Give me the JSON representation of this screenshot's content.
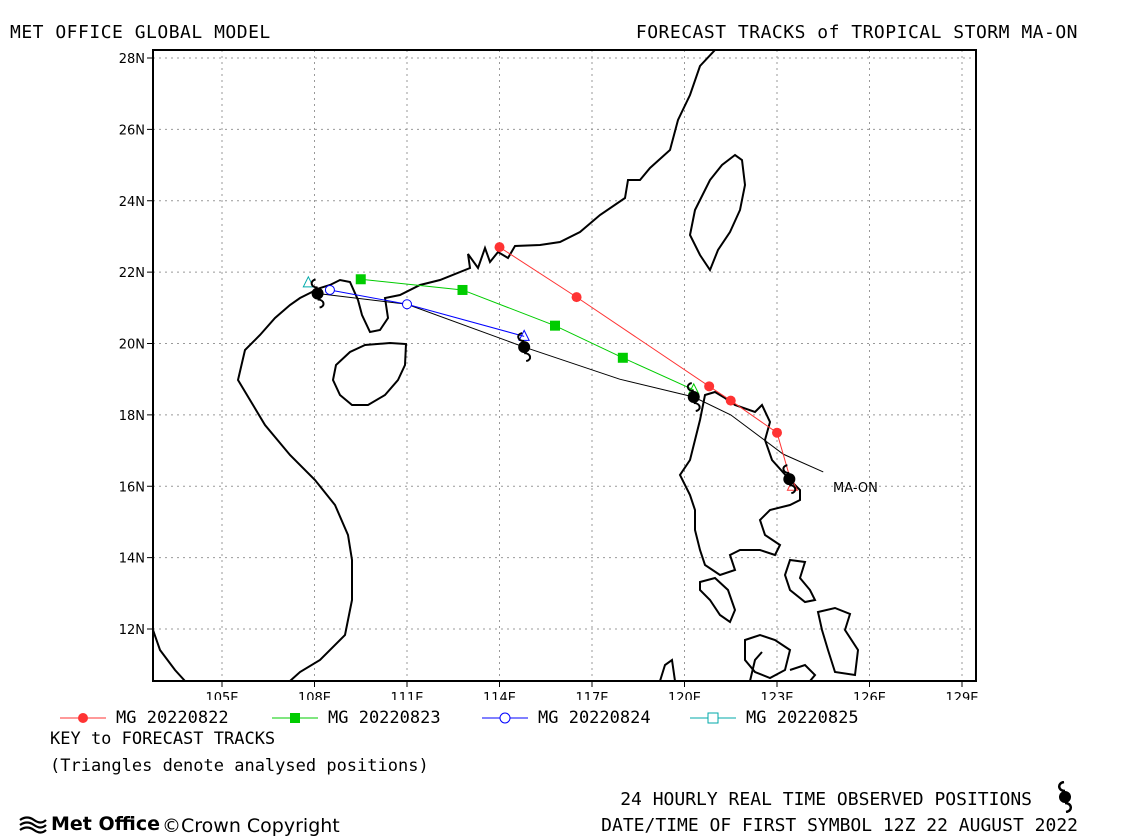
{
  "header": {
    "left": "MET OFFICE GLOBAL MODEL",
    "right": "FORECAST TRACKS of TROPICAL STORM MA-ON"
  },
  "chart_data": {
    "type": "map",
    "lon_range": [
      102.5,
      129.5
    ],
    "lat_range": [
      10.5,
      28.3
    ],
    "grid": true,
    "lon_ticks": [
      "105E",
      "108E",
      "111E",
      "114E",
      "117E",
      "120E",
      "123E",
      "126E",
      "129E"
    ],
    "lat_ticks": [
      "12N",
      "14N",
      "16N",
      "18N",
      "20N",
      "22N",
      "24N",
      "26N",
      "28N"
    ],
    "storm_label": "MA-ON",
    "observed": [
      {
        "lon": 123.4,
        "lat": 16.2
      },
      {
        "lon": 120.3,
        "lat": 18.5
      },
      {
        "lon": 114.8,
        "lat": 19.9
      },
      {
        "lon": 108.1,
        "lat": 21.4
      }
    ],
    "series": [
      {
        "name": "MG 20220822",
        "color": "#ff3333",
        "marker": "filled-circle",
        "points": [
          [
            123.5,
            16.0
          ],
          [
            123.0,
            17.5
          ],
          [
            121.5,
            18.4
          ],
          [
            120.8,
            18.8
          ],
          [
            116.5,
            21.3
          ],
          [
            114.0,
            22.7
          ]
        ]
      },
      {
        "name": "MG 20220823",
        "color": "#00cc00",
        "marker": "filled-square",
        "points": [
          [
            120.3,
            18.7
          ],
          [
            118.0,
            19.6
          ],
          [
            115.8,
            20.5
          ],
          [
            112.8,
            21.5
          ],
          [
            109.5,
            21.8
          ]
        ]
      },
      {
        "name": "MG 20220824",
        "color": "#0000ff",
        "marker": "open-circle",
        "points": [
          [
            114.8,
            20.2
          ],
          [
            111.0,
            21.1
          ],
          [
            108.5,
            21.5
          ]
        ]
      },
      {
        "name": "MG 20220825",
        "color": "#00aaaa",
        "marker": "open-square",
        "points": [
          [
            107.8,
            21.7
          ]
        ]
      }
    ],
    "observed_track": [
      [
        124.5,
        16.4
      ],
      [
        123.2,
        16.9
      ],
      [
        121.5,
        18.0
      ],
      [
        120.3,
        18.5
      ],
      [
        117.9,
        19.0
      ],
      [
        114.8,
        19.9
      ],
      [
        111.0,
        21.1
      ],
      [
        108.1,
        21.4
      ]
    ]
  },
  "legend": {
    "items": [
      {
        "label": "MG 20220822",
        "color": "#ff3333",
        "marker": "filled-circle"
      },
      {
        "label": "MG 20220823",
        "color": "#00cc00",
        "marker": "filled-square"
      },
      {
        "label": "MG 20220824",
        "color": "#0000ff",
        "marker": "open-circle"
      },
      {
        "label": "MG 20220825",
        "color": "#00aaaa",
        "marker": "open-square"
      }
    ]
  },
  "key": {
    "title": "KEY to FORECAST TRACKS",
    "note": "(Triangles denote analysed positions)"
  },
  "footer": {
    "observed": "24 HOURLY REAL TIME OBSERVED POSITIONS",
    "datetime": "DATE/TIME OF FIRST SYMBOL 12Z 22 AUGUST 2022",
    "logo": "Met Office",
    "copyright": "Crown Copyright"
  }
}
